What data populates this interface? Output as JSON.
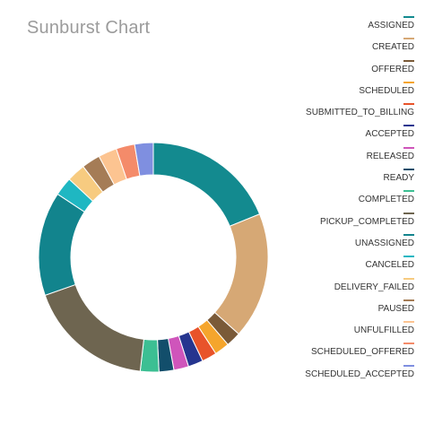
{
  "chart_data": {
    "type": "pie",
    "title": "Sunburst Chart",
    "legend_position": "right",
    "series": [
      {
        "name": "ASSIGNED",
        "value": 18,
        "color": "#138a8f"
      },
      {
        "name": "CREATED",
        "value": 17,
        "color": "#d6a875"
      },
      {
        "name": "OFFERED",
        "value": 2,
        "color": "#7a5a38"
      },
      {
        "name": "SCHEDULED",
        "value": 2,
        "color": "#f5a52c"
      },
      {
        "name": "SUBMITTED_TO_BILLING",
        "value": 2,
        "color": "#e8532a"
      },
      {
        "name": "ACCEPTED",
        "value": 2,
        "color": "#26358f"
      },
      {
        "name": "RELEASED",
        "value": 2,
        "color": "#cf55bb"
      },
      {
        "name": "READY",
        "value": 2,
        "color": "#124e6b"
      },
      {
        "name": "COMPLETED",
        "value": 2.5,
        "color": "#3cbf93"
      },
      {
        "name": "PICKUP_COMPLETED",
        "value": 17,
        "color": "#6e6550"
      },
      {
        "name": "UNASSIGNED",
        "value": 14,
        "color": "#12848d"
      },
      {
        "name": "CANCELED",
        "value": 2.5,
        "color": "#1fb7c2"
      },
      {
        "name": "DELIVERY_FAILED",
        "value": 2.5,
        "color": "#f7cb80"
      },
      {
        "name": "PAUSED",
        "value": 2.5,
        "color": "#a57c56"
      },
      {
        "name": "UNFULFILLED",
        "value": 2.5,
        "color": "#fcc491"
      },
      {
        "name": "SCHEDULED_OFFERED",
        "value": 2.5,
        "color": "#f48b6a"
      },
      {
        "name": "SCHEDULED_ACCEPTED",
        "value": 2.5,
        "color": "#7f8fe0"
      }
    ]
  }
}
